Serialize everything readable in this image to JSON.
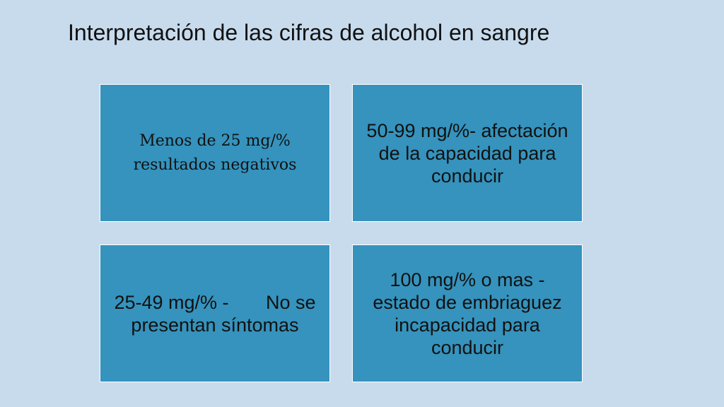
{
  "title": "Interpretación de las cifras de alcohol en sangre",
  "boxes": [
    {
      "text": "Menos de 25 mg/% resultados negativos"
    },
    {
      "text": "50-99 mg/%- afectación de la capacidad para conducir"
    },
    {
      "text": "25-49 mg/% -       No se presentan síntomas"
    },
    {
      "text": "100 mg/% o mas - estado de embriaguez incapacidad para conducir"
    }
  ],
  "colors": {
    "background": "#c7dbed",
    "box_fill": "#3593bd",
    "box_border": "#ffffff",
    "text": "#111111"
  }
}
